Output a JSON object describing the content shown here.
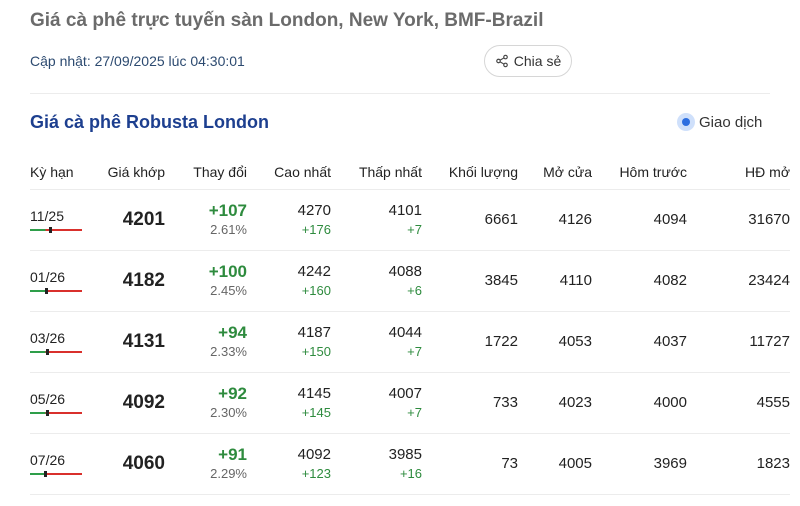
{
  "header": {
    "title": "Giá cà phê trực tuyến sàn London, New York, BMF-Brazil",
    "updated": "Cập nhật: 27/09/2025 lúc 04:30:01",
    "share_label": "Chia sẻ"
  },
  "section": {
    "title": "Giá cà phê Robusta London",
    "trade_label": "Giao dịch"
  },
  "table": {
    "columns": [
      "Kỳ hạn",
      "Giá khớp",
      "Thay đổi",
      "Cao nhất",
      "Thấp nhất",
      "Khối lượng",
      "Mở cửa",
      "Hôm trước",
      "HĐ mở"
    ],
    "rows": [
      {
        "term": "11/25",
        "price": "4201",
        "change": "+107",
        "change_pct": "2.61%",
        "high": "4270",
        "high_diff": "+176",
        "low": "4101",
        "low_diff": "+7",
        "volume": "6661",
        "open": "4126",
        "prev": "4094",
        "oi": "31670"
      },
      {
        "term": "01/26",
        "price": "4182",
        "change": "+100",
        "change_pct": "2.45%",
        "high": "4242",
        "high_diff": "+160",
        "low": "4088",
        "low_diff": "+6",
        "volume": "3845",
        "open": "4110",
        "prev": "4082",
        "oi": "23424"
      },
      {
        "term": "03/26",
        "price": "4131",
        "change": "+94",
        "change_pct": "2.33%",
        "high": "4187",
        "high_diff": "+150",
        "low": "4044",
        "low_diff": "+7",
        "volume": "1722",
        "open": "4053",
        "prev": "4037",
        "oi": "11727"
      },
      {
        "term": "05/26",
        "price": "4092",
        "change": "+92",
        "change_pct": "2.30%",
        "high": "4145",
        "high_diff": "+145",
        "low": "4007",
        "low_diff": "+7",
        "volume": "733",
        "open": "4023",
        "prev": "4000",
        "oi": "4555"
      },
      {
        "term": "07/26",
        "price": "4060",
        "change": "+91",
        "change_pct": "2.29%",
        "high": "4092",
        "high_diff": "+123",
        "low": "3985",
        "low_diff": "+16",
        "volume": "73",
        "open": "4005",
        "prev": "3969",
        "oi": "1823"
      }
    ]
  },
  "colors": {
    "section_title": "#1d3f8f",
    "positive": "#2e8b3e",
    "range_low": "#2e9e4a",
    "range_high": "#d9302c",
    "radio": "#2c6ee0"
  },
  "icons": {
    "share": "share-icon",
    "trade_toggle": "radio-selected-icon"
  }
}
